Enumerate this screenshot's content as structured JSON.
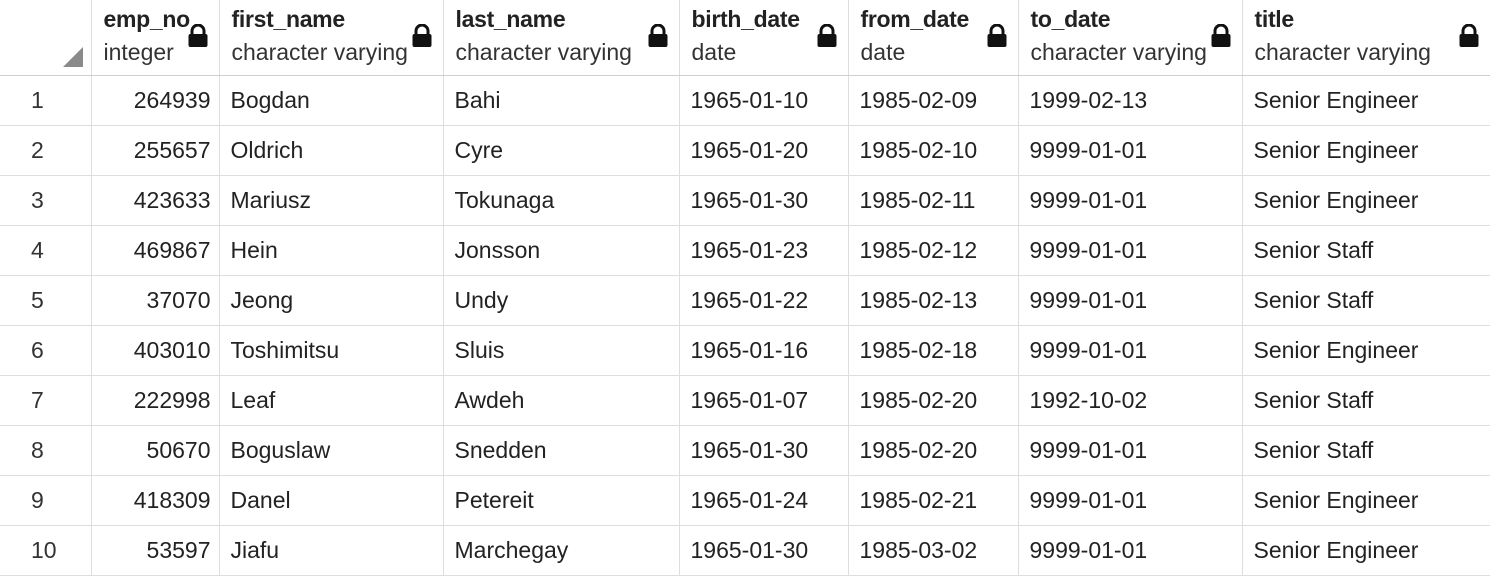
{
  "columns": [
    {
      "name": "emp_no",
      "type": "integer"
    },
    {
      "name": "first_name",
      "type": "character varying"
    },
    {
      "name": "last_name",
      "type": "character varying"
    },
    {
      "name": "birth_date",
      "type": "date"
    },
    {
      "name": "from_date",
      "type": "date"
    },
    {
      "name": "to_date",
      "type": "character varying"
    },
    {
      "name": "title",
      "type": "character varying"
    }
  ],
  "icons": {
    "column_lock": "lock-icon",
    "corner": "select-all-triangle"
  },
  "rows": [
    {
      "n": "1",
      "emp_no": "264939",
      "first_name": "Bogdan",
      "last_name": "Bahi",
      "birth_date": "1965-01-10",
      "from_date": "1985-02-09",
      "to_date": "1999-02-13",
      "title": "Senior Engineer"
    },
    {
      "n": "2",
      "emp_no": "255657",
      "first_name": "Oldrich",
      "last_name": "Cyre",
      "birth_date": "1965-01-20",
      "from_date": "1985-02-10",
      "to_date": "9999-01-01",
      "title": "Senior Engineer"
    },
    {
      "n": "3",
      "emp_no": "423633",
      "first_name": "Mariusz",
      "last_name": "Tokunaga",
      "birth_date": "1965-01-30",
      "from_date": "1985-02-11",
      "to_date": "9999-01-01",
      "title": "Senior Engineer"
    },
    {
      "n": "4",
      "emp_no": "469867",
      "first_name": "Hein",
      "last_name": "Jonsson",
      "birth_date": "1965-01-23",
      "from_date": "1985-02-12",
      "to_date": "9999-01-01",
      "title": "Senior Staff"
    },
    {
      "n": "5",
      "emp_no": "37070",
      "first_name": "Jeong",
      "last_name": "Undy",
      "birth_date": "1965-01-22",
      "from_date": "1985-02-13",
      "to_date": "9999-01-01",
      "title": "Senior Staff"
    },
    {
      "n": "6",
      "emp_no": "403010",
      "first_name": "Toshimitsu",
      "last_name": "Sluis",
      "birth_date": "1965-01-16",
      "from_date": "1985-02-18",
      "to_date": "9999-01-01",
      "title": "Senior Engineer"
    },
    {
      "n": "7",
      "emp_no": "222998",
      "first_name": "Leaf",
      "last_name": "Awdeh",
      "birth_date": "1965-01-07",
      "from_date": "1985-02-20",
      "to_date": "1992-10-02",
      "title": "Senior Staff"
    },
    {
      "n": "8",
      "emp_no": "50670",
      "first_name": "Boguslaw",
      "last_name": "Snedden",
      "birth_date": "1965-01-30",
      "from_date": "1985-02-20",
      "to_date": "9999-01-01",
      "title": "Senior Staff"
    },
    {
      "n": "9",
      "emp_no": "418309",
      "first_name": "Danel",
      "last_name": "Petereit",
      "birth_date": "1965-01-24",
      "from_date": "1985-02-21",
      "to_date": "9999-01-01",
      "title": "Senior Engineer"
    },
    {
      "n": "10",
      "emp_no": "53597",
      "first_name": "Jiafu",
      "last_name": "Marchegay",
      "birth_date": "1965-01-30",
      "from_date": "1985-03-02",
      "to_date": "9999-01-01",
      "title": "Senior Engineer"
    }
  ]
}
